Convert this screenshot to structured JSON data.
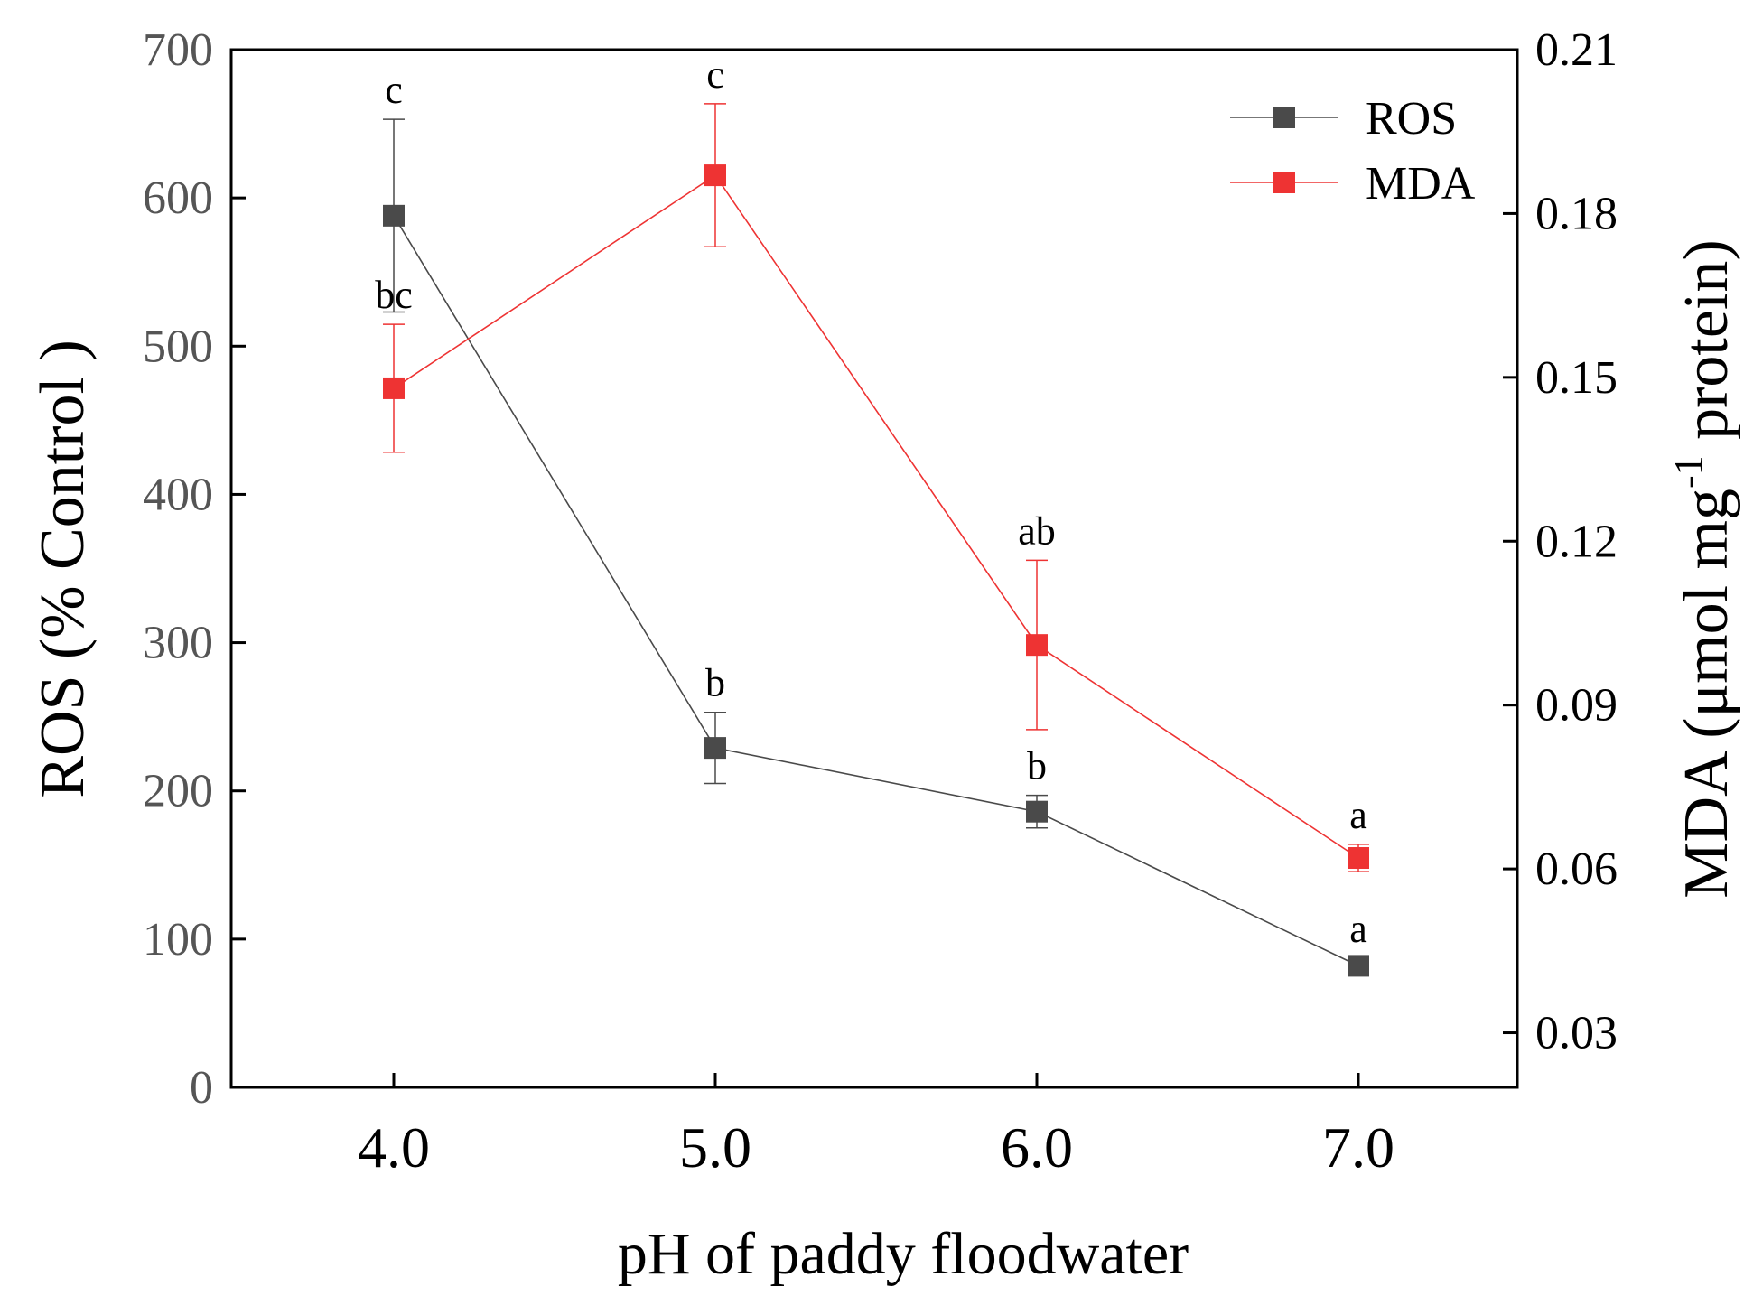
{
  "chart_data": {
    "type": "line",
    "x_categories": [
      "4.0",
      "5.0",
      "6.0",
      "7.0"
    ],
    "xlabel": "pH of paddy floodwater",
    "y_left": {
      "label": "ROS (% Control )",
      "range": [
        0,
        700
      ],
      "ticks": [
        "0",
        "100",
        "200",
        "300",
        "400",
        "500",
        "600",
        "700"
      ],
      "tick_values": [
        0,
        100,
        200,
        300,
        400,
        500,
        600,
        700
      ]
    },
    "y_right": {
      "label_main": "MDA (μmol mg",
      "label_sup": "-1",
      "label_end": " protein)",
      "range": [
        0.02,
        0.21
      ],
      "ticks": [
        "0.03",
        "0.06",
        "0.09",
        "0.12",
        "0.15",
        "0.18",
        "0.21"
      ],
      "tick_values": [
        0.03,
        0.06,
        0.09,
        0.12,
        0.15,
        0.18,
        0.21
      ]
    },
    "series": [
      {
        "name": "ROS",
        "axis": "left",
        "color": "#4a4a4a",
        "values": [
          588,
          229,
          186,
          82
        ],
        "errors": [
          65,
          24,
          11,
          5
        ],
        "labels": [
          "c",
          "b",
          "b",
          "a"
        ]
      },
      {
        "name": "MDA",
        "axis": "right",
        "color": "#ee3333",
        "values": [
          0.148,
          0.187,
          0.101,
          0.062
        ],
        "errors": [
          0.0117,
          0.0131,
          0.0155,
          0.0025
        ],
        "labels": [
          "bc",
          "c",
          "ab",
          "a"
        ]
      }
    ],
    "legend_position": "top-right"
  }
}
